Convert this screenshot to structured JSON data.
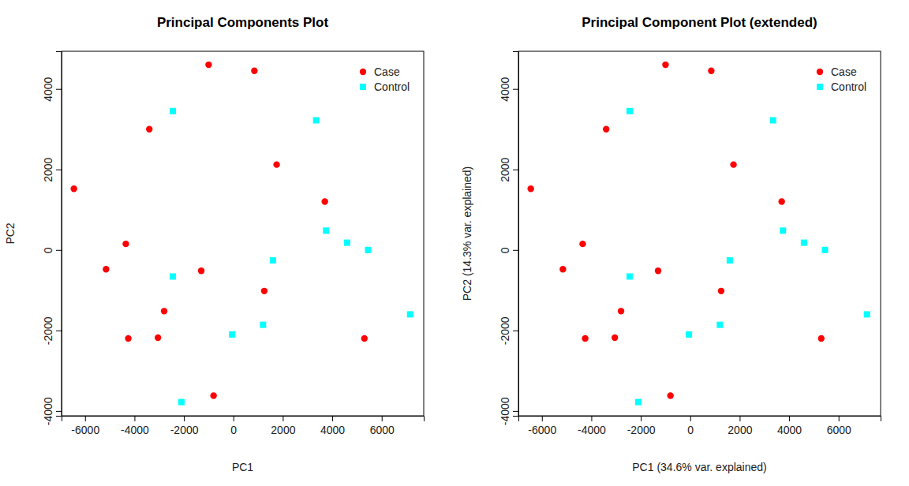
{
  "chart_data": [
    {
      "type": "scatter",
      "title": "Principal Components Plot",
      "x_label": "PC1",
      "y_label": "PC2",
      "xlim": [
        -6950,
        7700
      ],
      "ylim": [
        -4120,
        4935
      ],
      "xticks": [
        -6000,
        -4000,
        -2000,
        0,
        2000,
        4000,
        6000
      ],
      "yticks": [
        -4000,
        -2000,
        0,
        2000,
        4000
      ],
      "legend": "topright",
      "series": [
        {
          "name": "Case",
          "color": "#ff0000",
          "marker": "circle",
          "x": [
            -1000,
            850,
            -3400,
            1750,
            -6450,
            3700,
            -4350,
            -5150,
            -1300,
            1250,
            -2800,
            -4250,
            -3050,
            5300,
            -800
          ],
          "values": [
            4600,
            4450,
            3000,
            2120,
            1520,
            1200,
            150,
            -480,
            -520,
            -1020,
            -1520,
            -2200,
            -2180,
            -2200,
            -3620
          ]
        },
        {
          "name": "Control",
          "color": "#00ffff",
          "marker": "square",
          "x": [
            -2450,
            3350,
            3750,
            4600,
            5450,
            1600,
            -2450,
            7150,
            1200,
            -50,
            -2100
          ],
          "values": [
            3450,
            3220,
            480,
            180,
            0,
            -260,
            -660,
            -1600,
            -1860,
            -2100,
            -3780
          ]
        }
      ]
    },
    {
      "type": "scatter",
      "title": "Principal Component Plot (extended)",
      "x_label": "PC1 (34.6% var. explained)",
      "y_label": "PC2 (14.3% var. explained)",
      "xlim": [
        -6950,
        7700
      ],
      "ylim": [
        -4120,
        4935
      ],
      "xticks": [
        -6000,
        -4000,
        -2000,
        0,
        2000,
        4000,
        6000
      ],
      "yticks": [
        -4000,
        -2000,
        0,
        2000,
        4000
      ],
      "legend": "topright",
      "series": [
        {
          "name": "Case",
          "color": "#ff0000",
          "marker": "circle",
          "x": [
            -1000,
            850,
            -3400,
            1750,
            -6450,
            3700,
            -4350,
            -5150,
            -1300,
            1250,
            -2800,
            -4250,
            -3050,
            5300,
            -800
          ],
          "values": [
            4600,
            4450,
            3000,
            2120,
            1520,
            1200,
            150,
            -480,
            -520,
            -1020,
            -1520,
            -2200,
            -2180,
            -2200,
            -3620
          ]
        },
        {
          "name": "Control",
          "color": "#00ffff",
          "marker": "square",
          "x": [
            -2450,
            3350,
            3750,
            4600,
            5450,
            1600,
            -2450,
            7150,
            1200,
            -50,
            -2100
          ],
          "values": [
            3450,
            3220,
            480,
            180,
            0,
            -260,
            -660,
            -1600,
            -1860,
            -2100,
            -3780
          ]
        }
      ]
    }
  ]
}
